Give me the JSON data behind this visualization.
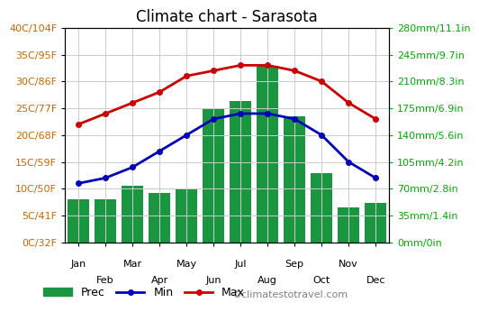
{
  "title": "Climate chart - Sarasota",
  "months_all": [
    "Jan",
    "Feb",
    "Mar",
    "Apr",
    "May",
    "Jun",
    "Jul",
    "Aug",
    "Sep",
    "Oct",
    "Nov",
    "Dec"
  ],
  "precip_mm": [
    56,
    56,
    74,
    64,
    69,
    175,
    185,
    230,
    165,
    90,
    46,
    52
  ],
  "temp_min_c": [
    11,
    12,
    14,
    17,
    20,
    23,
    24,
    24,
    23,
    20,
    15,
    12
  ],
  "temp_max_c": [
    22,
    24,
    26,
    28,
    31,
    32,
    33,
    33,
    32,
    30,
    26,
    23
  ],
  "bar_color": "#1a9641",
  "min_color": "#0000bb",
  "max_color": "#cc0000",
  "grid_color": "#cccccc",
  "bg_color": "#ffffff",
  "left_yticks_c": [
    0,
    5,
    10,
    15,
    20,
    25,
    30,
    35,
    40
  ],
  "left_yticks_f": [
    32,
    41,
    50,
    59,
    68,
    77,
    86,
    95,
    104
  ],
  "right_yticks_mm": [
    0,
    35,
    70,
    105,
    140,
    175,
    210,
    245,
    280
  ],
  "right_yticks_in_str": [
    "0in",
    "1.4in",
    "2.8in",
    "4.2in",
    "5.6in",
    "6.9in",
    "8.3in",
    "9.7in",
    "11.1in"
  ],
  "temp_axis_min": 0,
  "temp_axis_max": 40,
  "precip_axis_min": 0,
  "precip_axis_max": 280,
  "watermark": "©climatestotravel.com",
  "title_fontsize": 12,
  "tick_fontsize": 8,
  "legend_fontsize": 9,
  "watermark_fontsize": 8,
  "right_tick_color": "#00aa00",
  "left_tick_color_c": "#cc6600",
  "left_tick_color_f": "#0000cc"
}
